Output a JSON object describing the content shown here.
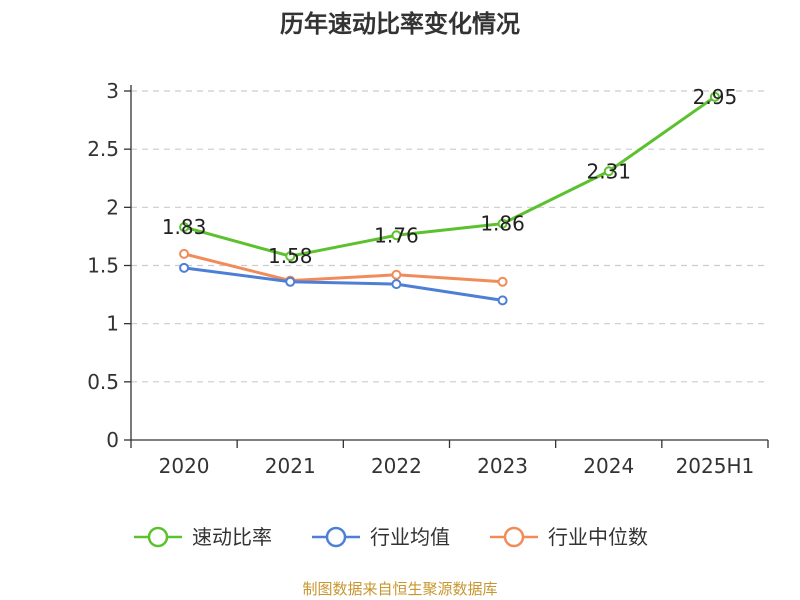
{
  "chart_data": {
    "type": "line",
    "title": "历年速动比率变化情况",
    "categories": [
      "2020",
      "2021",
      "2022",
      "2023",
      "2024",
      "2025H1"
    ],
    "ylim": [
      0,
      3
    ],
    "yticks": [
      "0",
      "0.5",
      "1",
      "1.5",
      "2",
      "2.5",
      "3"
    ],
    "grid": true,
    "legend_position": "bottom",
    "series": [
      {
        "name": "速动比率",
        "color": "#5cc12f",
        "values": [
          1.83,
          1.58,
          1.76,
          1.86,
          2.31,
          2.95
        ],
        "labels": [
          "1.83",
          "1.58",
          "1.76",
          "1.86",
          "2.31",
          "2.95"
        ]
      },
      {
        "name": "行业均值",
        "color": "#4e7fd6",
        "values": [
          1.48,
          1.36,
          1.34,
          1.2,
          null,
          null
        ]
      },
      {
        "name": "行业中位数",
        "color": "#f08c5a",
        "values": [
          1.6,
          1.37,
          1.42,
          1.36,
          null,
          null
        ]
      }
    ],
    "source": "制图数据来自恒生聚源数据库"
  }
}
